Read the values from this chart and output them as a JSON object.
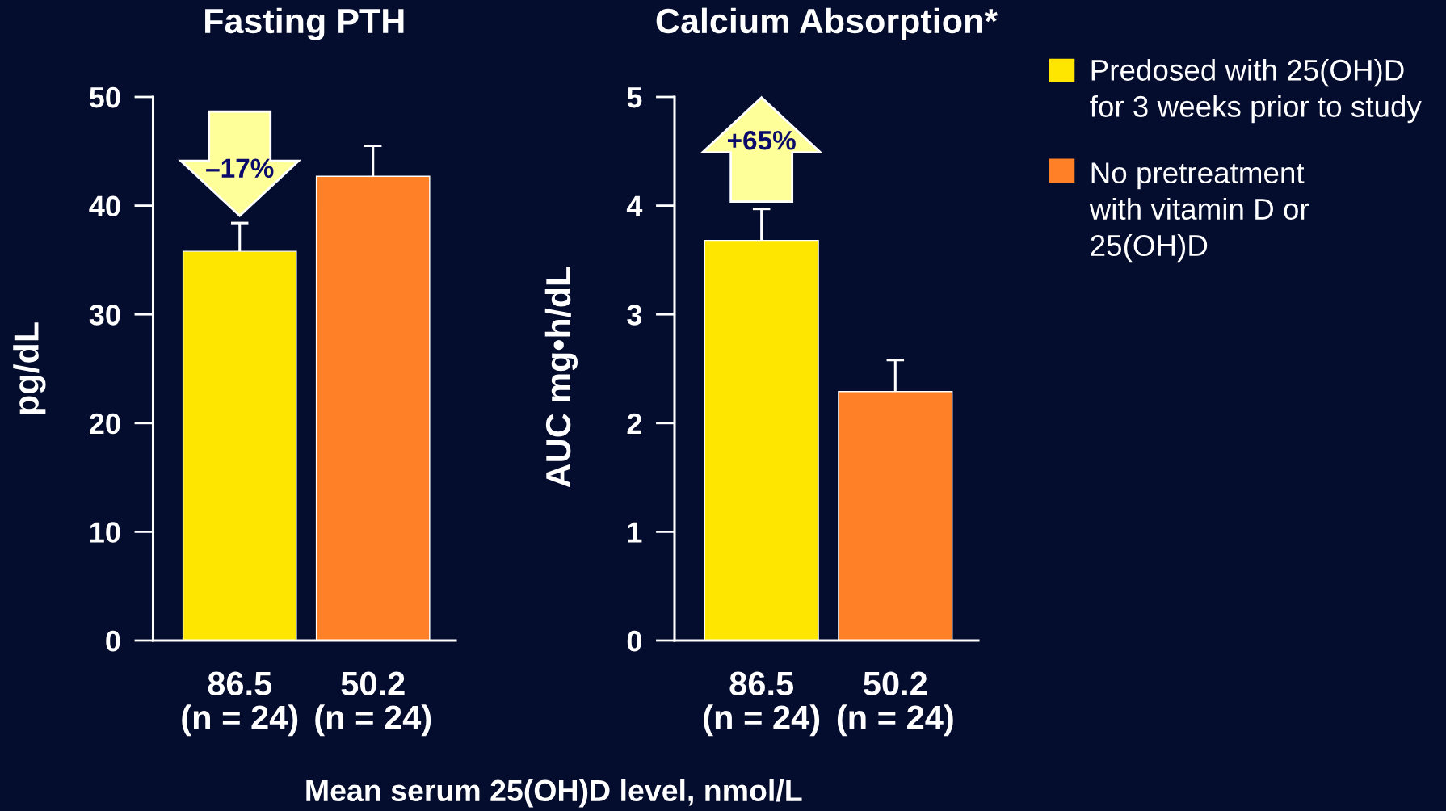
{
  "chart_data": [
    {
      "type": "bar",
      "title": "Fasting PTH",
      "ylabel": "pg/dL",
      "xlabel": "Mean serum 25(OH)D level, nmol/L",
      "categories": [
        "86.5\n(n = 24)",
        "50.2\n(n = 24)"
      ],
      "series": [
        {
          "color": "#ffe600",
          "values": [
            35.8,
            null
          ],
          "errors": [
            [
              35.8,
              38.4
            ],
            null
          ]
        },
        {
          "color": "#ff8026",
          "values": [
            null,
            42.7
          ],
          "errors": [
            null,
            [
              42.7,
              45.5
            ]
          ]
        }
      ],
      "ylim": [
        0,
        50
      ],
      "yticks": [
        0,
        10,
        20,
        30,
        40,
        50
      ],
      "annotations": [
        "–17%"
      ]
    },
    {
      "type": "bar",
      "title": "Calcium Absorption*",
      "ylabel": "AUC mg•h/dL",
      "categories": [
        "86.5\n(n = 24)",
        "50.2\n(n = 24)"
      ],
      "series": [
        {
          "name": "Predosed with 25(OH)D\nfor 3 weeks prior to study",
          "color": "#ffe600",
          "values": [
            3.68,
            null
          ],
          "errors": [
            [
              3.68,
              3.97
            ],
            null
          ]
        },
        {
          "name": "No pretreatment\nwith vitamin D or\n25(OH)D",
          "color": "#ff8026",
          "values": [
            null,
            2.29
          ],
          "errors": [
            null,
            [
              2.29,
              2.58
            ]
          ]
        }
      ],
      "ylim": [
        0,
        5
      ],
      "yticks": [
        0,
        1,
        2,
        3,
        4,
        5
      ],
      "legend": "right",
      "annotations": [
        "+65%"
      ]
    }
  ]
}
